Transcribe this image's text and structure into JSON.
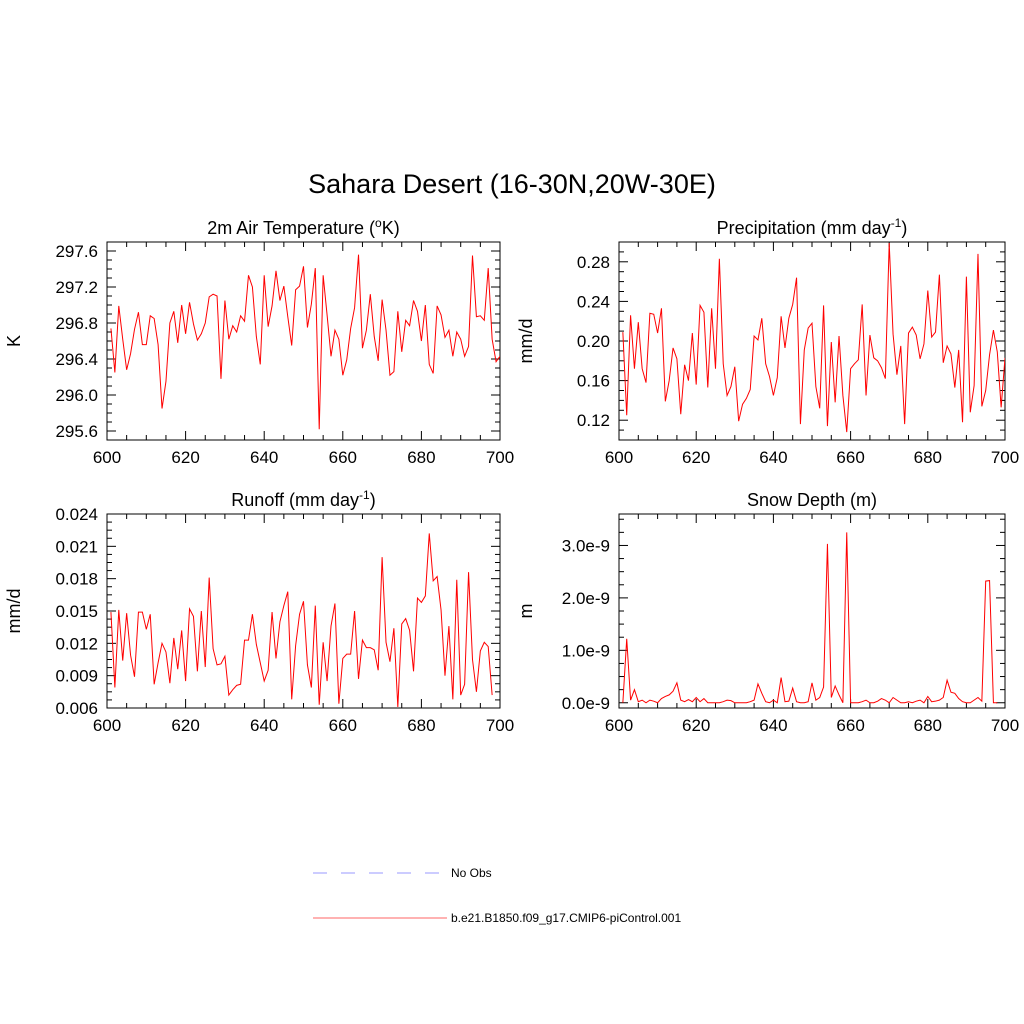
{
  "figure": {
    "title": "Sahara Desert (16-30N,20W-30E)"
  },
  "legend": {
    "items": [
      {
        "label": "No Obs",
        "style": "dashed",
        "color": "#9999ff"
      },
      {
        "label": "b.e21.B1850.f09_g17.CMIP6-piControl.001",
        "style": "solid",
        "color": "#ff6666"
      }
    ]
  },
  "chart_data": [
    {
      "type": "line",
      "title_pre": "2m Air Temperature (",
      "title_sup": "o",
      "title_post": "K)",
      "ylabel": "K",
      "xlabel": "",
      "xlim": [
        600,
        700
      ],
      "ylim": [
        295.5,
        297.7
      ],
      "xticks": [
        600,
        620,
        640,
        660,
        680,
        700
      ],
      "yticks": [
        295.6,
        296.0,
        296.4,
        296.8,
        297.2,
        297.6
      ],
      "ytick_labels": [
        "295.6",
        "296.0",
        "296.4",
        "296.8",
        "297.2",
        "297.6"
      ],
      "series": [
        {
          "color": "#ff0000",
          "x0": 601,
          "values": [
            296.74,
            296.25,
            296.99,
            296.62,
            296.28,
            296.46,
            296.73,
            296.92,
            296.56,
            296.56,
            296.88,
            296.85,
            296.56,
            295.85,
            296.15,
            296.8,
            296.93,
            296.58,
            297.0,
            296.68,
            297.03,
            296.79,
            296.61,
            296.68,
            296.8,
            297.09,
            297.12,
            297.1,
            296.18,
            297.05,
            296.62,
            296.77,
            296.7,
            296.88,
            296.82,
            297.33,
            297.2,
            296.65,
            296.34,
            297.33,
            296.76,
            296.99,
            297.38,
            297.05,
            297.21,
            296.87,
            296.55,
            297.17,
            297.21,
            297.43,
            296.75,
            297.01,
            297.41,
            295.62,
            297.33,
            296.89,
            296.43,
            296.72,
            296.62,
            296.22,
            296.39,
            296.74,
            296.97,
            297.56,
            296.52,
            296.72,
            297.12,
            296.65,
            296.38,
            297.06,
            296.72,
            296.22,
            296.26,
            296.93,
            296.48,
            296.83,
            296.77,
            297.05,
            296.93,
            296.6,
            297.0,
            296.34,
            296.24,
            296.99,
            296.89,
            296.64,
            296.72,
            296.43,
            296.7,
            296.62,
            296.43,
            296.54,
            297.55,
            296.87,
            296.88,
            296.83,
            297.41,
            296.62,
            296.37,
            296.43
          ]
        }
      ]
    },
    {
      "type": "line",
      "title_pre": "Precipitation (mm day",
      "title_sup": "-1",
      "title_post": ")",
      "ylabel": "mm/d",
      "xlabel": "",
      "xlim": [
        600,
        700
      ],
      "ylim": [
        0.1,
        0.3
      ],
      "xticks": [
        600,
        620,
        640,
        660,
        680,
        700
      ],
      "yticks": [
        0.12,
        0.16,
        0.2,
        0.24,
        0.28
      ],
      "ytick_labels": [
        "0.12",
        "0.16",
        "0.20",
        "0.24",
        "0.28"
      ],
      "series": [
        {
          "color": "#ff0000",
          "x0": 601,
          "values": [
            0.209,
            0.125,
            0.226,
            0.172,
            0.219,
            0.172,
            0.158,
            0.228,
            0.227,
            0.208,
            0.233,
            0.139,
            0.16,
            0.193,
            0.182,
            0.126,
            0.176,
            0.16,
            0.208,
            0.156,
            0.236,
            0.229,
            0.153,
            0.233,
            0.172,
            0.283,
            0.177,
            0.145,
            0.154,
            0.174,
            0.119,
            0.136,
            0.142,
            0.151,
            0.205,
            0.201,
            0.223,
            0.177,
            0.164,
            0.145,
            0.163,
            0.225,
            0.193,
            0.223,
            0.237,
            0.264,
            0.116,
            0.191,
            0.213,
            0.218,
            0.154,
            0.132,
            0.236,
            0.114,
            0.199,
            0.138,
            0.205,
            0.145,
            0.108,
            0.172,
            0.177,
            0.181,
            0.237,
            0.145,
            0.206,
            0.183,
            0.18,
            0.173,
            0.162,
            0.299,
            0.207,
            0.166,
            0.195,
            0.116,
            0.208,
            0.214,
            0.206,
            0.182,
            0.197,
            0.251,
            0.204,
            0.209,
            0.267,
            0.178,
            0.195,
            0.187,
            0.153,
            0.191,
            0.118,
            0.265,
            0.128,
            0.155,
            0.288,
            0.134,
            0.15,
            0.186,
            0.211,
            0.189,
            0.133,
            0.183
          ]
        }
      ]
    },
    {
      "type": "line",
      "title_pre": "Runoff (mm day",
      "title_sup": "-1",
      "title_post": ")",
      "ylabel": "mm/d",
      "xlabel": "",
      "xlim": [
        600,
        700
      ],
      "ylim": [
        0.006,
        0.024
      ],
      "xticks": [
        600,
        620,
        640,
        660,
        680,
        700
      ],
      "yticks": [
        0.006,
        0.009,
        0.012,
        0.015,
        0.018,
        0.021,
        0.024
      ],
      "ytick_labels": [
        "0.006",
        "0.009",
        "0.012",
        "0.015",
        "0.018",
        "0.021",
        "0.024"
      ],
      "series": [
        {
          "color": "#ff0000",
          "x0": 601,
          "values": [
            0.0149,
            0.0079,
            0.0151,
            0.0104,
            0.0148,
            0.0109,
            0.0089,
            0.0149,
            0.0149,
            0.0133,
            0.0147,
            0.0082,
            0.0102,
            0.012,
            0.0112,
            0.0083,
            0.0125,
            0.0096,
            0.0132,
            0.0085,
            0.0152,
            0.0145,
            0.0094,
            0.015,
            0.0098,
            0.0181,
            0.0115,
            0.01,
            0.0101,
            0.0108,
            0.0072,
            0.0077,
            0.0081,
            0.0082,
            0.0123,
            0.0123,
            0.0147,
            0.0119,
            0.0102,
            0.0085,
            0.0095,
            0.0149,
            0.0106,
            0.014,
            0.0155,
            0.0168,
            0.0068,
            0.0118,
            0.0147,
            0.0159,
            0.01,
            0.0079,
            0.0155,
            0.0063,
            0.0121,
            0.0085,
            0.0136,
            0.0157,
            0.0064,
            0.0106,
            0.011,
            0.011,
            0.015,
            0.0087,
            0.0123,
            0.0116,
            0.0116,
            0.0114,
            0.0095,
            0.02,
            0.0121,
            0.0103,
            0.0134,
            0.0061,
            0.0138,
            0.0143,
            0.0132,
            0.0094,
            0.0162,
            0.0158,
            0.0164,
            0.0222,
            0.0178,
            0.0182,
            0.0151,
            0.009,
            0.0136,
            0.0068,
            0.0179,
            0.0072,
            0.0082,
            0.0186,
            0.0105,
            0.0075,
            0.0113,
            0.0121,
            0.0117,
            0.0072
          ]
        }
      ]
    },
    {
      "type": "line",
      "title_pre": "Snow Depth (m)",
      "title_sup": "",
      "title_post": "",
      "ylabel": "m",
      "xlabel": "",
      "xlim": [
        600,
        700
      ],
      "ylim": [
        -1e-10,
        3.6e-09
      ],
      "xticks": [
        600,
        620,
        640,
        660,
        680,
        700
      ],
      "yticks": [
        0,
        1e-09,
        2e-09,
        3e-09
      ],
      "ytick_labels": [
        "0.0e-9",
        "1.0e-9",
        "2.0e-9",
        "3.0e-9"
      ],
      "series": [
        {
          "color": "#ff0000",
          "x0": 601,
          "values": [
            0.0,
            1.22e-09,
            5e-11,
            2.5e-10,
            2e-11,
            5e-11,
            0.0,
            5e-11,
            3e-11,
            0.0,
            8e-11,
            1.2e-10,
            1.5e-10,
            2.2e-10,
            3.8e-10,
            5e-11,
            2e-11,
            6e-11,
            2e-11,
            1e-10,
            2e-11,
            8e-11,
            0.0,
            0.0,
            0.0,
            0.0,
            2e-11,
            5e-11,
            4e-11,
            0.0,
            0.0,
            0.0,
            0.0,
            2e-11,
            5e-11,
            3.6e-10,
            1.8e-10,
            2e-11,
            0.0,
            5e-11,
            0.0,
            4.8e-10,
            2e-11,
            3e-11,
            2.8e-10,
            2e-11,
            0.0,
            0.0,
            2e-11,
            3.8e-10,
            5e-11,
            1e-10,
            3e-10,
            3.03e-09,
            1e-10,
            3.2e-10,
            1.5e-10,
            0.0,
            3.25e-09,
            0.0,
            0.0,
            0.0,
            2e-11,
            5e-11,
            0.0,
            0.0,
            3e-11,
            8e-11,
            5e-11,
            0.0,
            1e-10,
            5e-11,
            0.0,
            0.0,
            2e-11,
            0.0,
            3e-11,
            5e-11,
            0.0,
            1.2e-10,
            2e-11,
            3e-11,
            5e-11,
            1e-10,
            4.3e-10,
            2e-10,
            1.8e-10,
            8e-11,
            2e-11,
            0.0,
            0.0,
            5e-11,
            1e-10,
            3e-11,
            2.32e-09,
            2.33e-09,
            0.0,
            0.0
          ]
        }
      ]
    }
  ]
}
